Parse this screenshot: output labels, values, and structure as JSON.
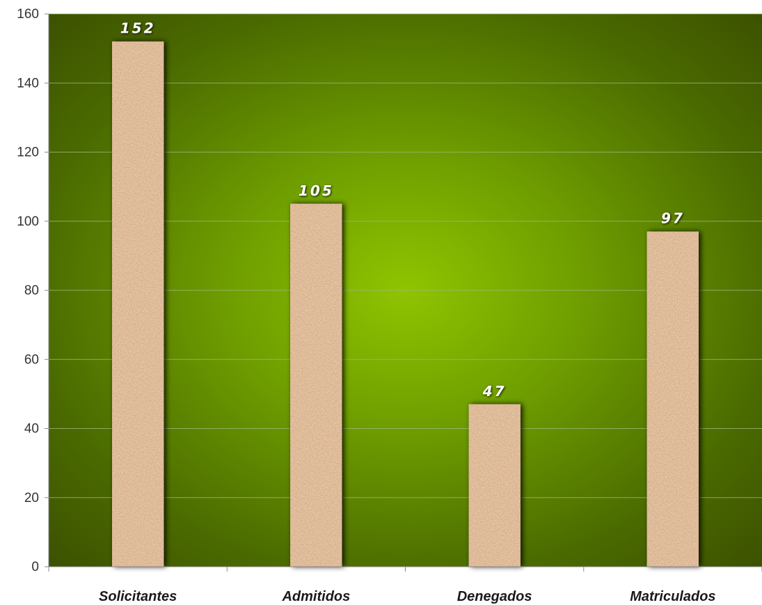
{
  "chart_data": {
    "type": "bar",
    "title": "",
    "xlabel": "",
    "ylabel": "",
    "categories": [
      "Solicitantes",
      "Admitidos",
      "Denegados",
      "Matriculados"
    ],
    "values": [
      152,
      105,
      47,
      97
    ],
    "data_labels": [
      "152",
      "105",
      "47",
      "97"
    ],
    "ylim": [
      0,
      160
    ],
    "yticks": [
      0,
      20,
      40,
      60,
      80,
      100,
      120,
      140,
      160
    ],
    "grid": true,
    "legend": "none",
    "colors": {
      "plot_center": "#8fc400",
      "plot_edge": "#3d5200",
      "bar_base": "#c8956a",
      "gridline": "#9fb87a",
      "data_label": "#ffffff"
    }
  }
}
